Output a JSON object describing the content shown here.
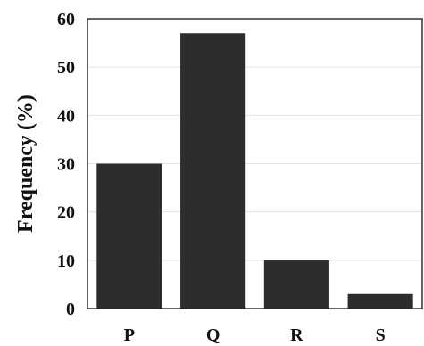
{
  "chart_data": {
    "type": "bar",
    "categories": [
      "P",
      "Q",
      "R",
      "S"
    ],
    "values": [
      30,
      57,
      10,
      3
    ],
    "ylabel": "Frequency (%)",
    "xlabel": "",
    "ylim": [
      0,
      60
    ],
    "yticks": [
      0,
      10,
      20,
      30,
      40,
      50,
      60
    ],
    "grid": true,
    "bar_color": "#2d2d2d"
  }
}
